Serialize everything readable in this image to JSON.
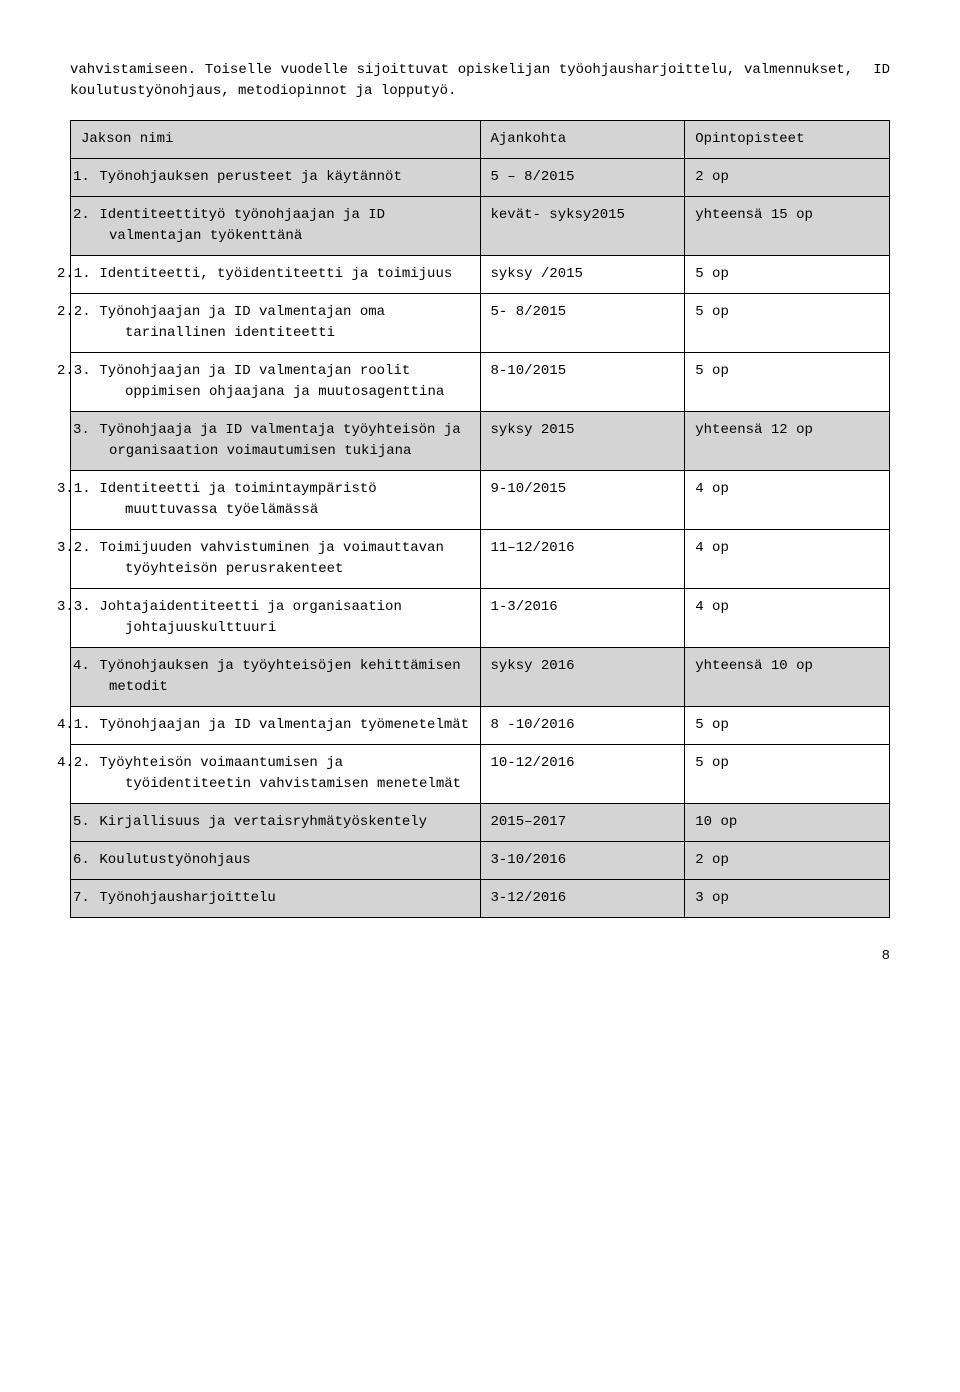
{
  "intro": {
    "text": "vahvistamiseen. Toiselle vuodelle sijoittuvat opiskelijan työohjausharjoittelu, valmennukset, koulutustyönohjaus, metodiopinnot ja lopputyö.",
    "id_tag": "ID"
  },
  "header": {
    "col1": "Jakson nimi",
    "col2": "Ajankohta",
    "col3": "Opintopisteet"
  },
  "rows": [
    {
      "n": "1.",
      "label": "Työnohjauksen perusteet ja käytännöt",
      "time": "5 – 8/2015",
      "pts": "2 op",
      "shaded": true,
      "sub": false
    },
    {
      "n": "2.",
      "label": "Identiteettityö työnohjaajan ja ID valmentajan työkenttänä",
      "time": " kevät- syksy2015",
      "pts": "yhteensä 15 op",
      "shaded": true,
      "sub": false
    },
    {
      "n": "2.1.",
      "label": "Identiteetti, työidentiteetti ja toimijuus",
      "time": "syksy /2015",
      "pts": "5 op",
      "shaded": false,
      "sub": true
    },
    {
      "n": "2.2.",
      "label": "Työnohjaajan ja ID valmentajan oma tarinallinen identiteetti",
      "time": "5- 8/2015",
      "pts": "5 op",
      "shaded": false,
      "sub": true
    },
    {
      "n": "2.3.",
      "label": "Työnohjaajan ja ID valmentajan roolit oppimisen ohjaajana ja muutosagenttina",
      "time": "8-10/2015",
      "pts": "5 op",
      "shaded": false,
      "sub": true
    },
    {
      "n": "3.",
      "label": "Työnohjaaja ja ID valmentaja työyhteisön ja organisaation voimautumisen tukijana",
      "time": "syksy 2015",
      "pts": "yhteensä 12 op",
      "shaded": true,
      "sub": false
    },
    {
      "n": "3.1.",
      "label": "Identiteetti ja toimintaympäristö muuttuvassa työelämässä",
      "time": "9-10/2015",
      "pts": "4 op",
      "shaded": false,
      "sub": true
    },
    {
      "n": "3.2.",
      "label": "Toimijuuden vahvistuminen ja voimauttavan työyhteisön perusrakenteet",
      "time": "11–12/2016",
      "pts": "4 op",
      "shaded": false,
      "sub": true
    },
    {
      "n": "3.3.",
      "label": "Johtajaidentiteetti ja organisaation johtajuuskulttuuri",
      "time": "1-3/2016",
      "pts": "4 op",
      "shaded": false,
      "sub": true
    },
    {
      "n": "4.",
      "label": "Työnohjauksen ja työyhteisöjen kehittämisen metodit",
      "time": " syksy 2016",
      "pts": "yhteensä 10 op",
      "shaded": true,
      "sub": false
    },
    {
      "n": "4.1.",
      "label": "Työnohjaajan ja ID valmentajan työmenetelmät",
      "time": "8 -10/2016",
      "pts": "5 op",
      "shaded": false,
      "sub": true
    },
    {
      "n": "4.2.",
      "label": "Työyhteisön voimaantumisen ja työidentiteetin vahvistamisen menetelmät",
      "time": "10-12/2016",
      "pts": "5 op",
      "shaded": false,
      "sub": true
    },
    {
      "n": "5.",
      "label": "Kirjallisuus ja vertaisryhmätyöskentely",
      "time": "2015–2017",
      "pts": "10 op",
      "shaded": true,
      "sub": false
    },
    {
      "n": "6.",
      "label": "Koulutustyönohjaus",
      "time": "3-10/2016",
      "pts": "2 op",
      "shaded": true,
      "sub": false
    },
    {
      "n": "7.",
      "label": "Työnohjausharjoittelu",
      "time": "3-12/2016",
      "pts": "3 op",
      "shaded": true,
      "sub": false
    }
  ],
  "page_number": "8",
  "colors": {
    "shaded_bg": "#d4d4d4",
    "border": "#000000",
    "text": "#000000",
    "page_bg": "#ffffff"
  }
}
